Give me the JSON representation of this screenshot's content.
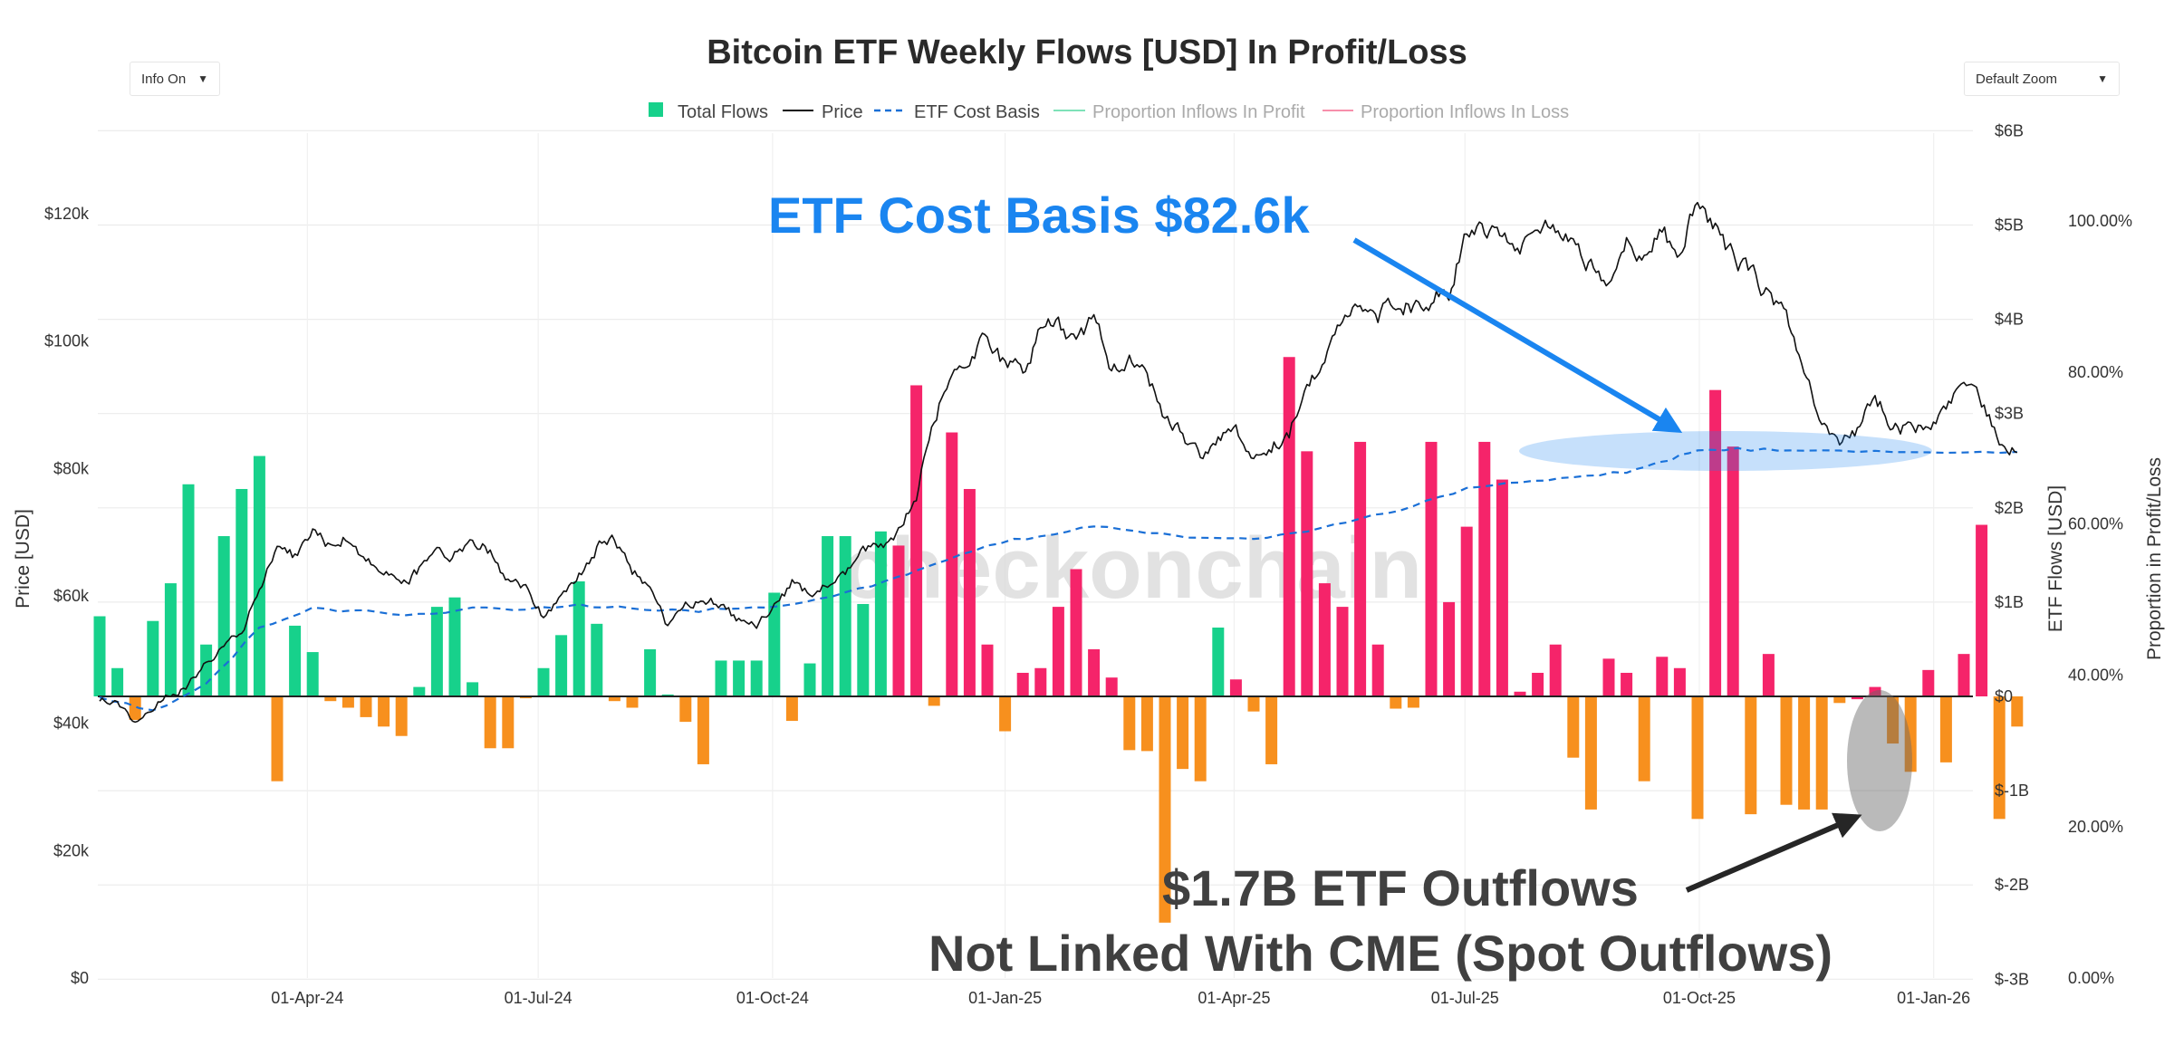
{
  "controls": {
    "info_label": "Info On",
    "zoom_label": "Default Zoom"
  },
  "watermark": "checkonchain",
  "annotations": {
    "cost_basis": "ETF Cost Basis $82.6k",
    "outflows_line1": "$1.7B ETF Outflows",
    "outflows_line2": "Not Linked With CME (Spot Outflows)"
  },
  "colors": {
    "inflow_profit": "#17d18b",
    "inflow_loss": "#f5246a",
    "outflow": "#f7901e",
    "price": "#111111",
    "cost_basis": "#1a6fd6",
    "annotation_blue": "#1a85f0",
    "annotation_dark": "#404040",
    "legend_profit": "#7ee2b8",
    "legend_loss": "#f78fab"
  },
  "chart_data": {
    "type": "bar",
    "title": "Bitcoin ETF Weekly Flows [USD] In Profit/Loss",
    "legend": [
      "Total Flows",
      "Price",
      "ETF Cost Basis",
      "Proportion Inflows In Profit",
      "Proportion Inflows In Loss"
    ],
    "x_ticks": [
      "01-Apr-24",
      "01-Jul-24",
      "01-Oct-24",
      "01-Jan-25",
      "01-Apr-25",
      "01-Jul-25",
      "01-Oct-25",
      "01-Jan-26"
    ],
    "x_tick_weeks": [
      11.7,
      24.7,
      37.9,
      51.0,
      63.9,
      76.9,
      90.1,
      103.3
    ],
    "y_left": {
      "label": "Price [USD]",
      "ticks": [
        "$0",
        "$20k",
        "$40k",
        "$60k",
        "$80k",
        "$100k",
        "$120k"
      ],
      "range": [
        0,
        130000
      ]
    },
    "y_right": {
      "label": "ETF Flows [USD]",
      "ticks": [
        "$-3B",
        "$-2B",
        "$-1B",
        "$0",
        "$1B",
        "$2B",
        "$3B",
        "$4B",
        "$5B",
        "$6B"
      ],
      "range": [
        -3,
        6
      ]
    },
    "y_right2": {
      "label": "Proportion in Profit/Loss",
      "ticks": [
        "0.00%",
        "20.00%",
        "40.00%",
        "60.00%",
        "80.00%",
        "100.00%"
      ]
    },
    "series": [
      {
        "name": "Total Flows",
        "unit": "USD billions",
        "values": [
          0.85,
          0.3,
          -0.25,
          0.8,
          1.2,
          2.25,
          0.55,
          1.7,
          2.2,
          2.55,
          -0.9,
          0.75,
          0.47,
          -0.05,
          -0.12,
          -0.22,
          -0.32,
          -0.42,
          0.1,
          0.95,
          1.05,
          0.15,
          -0.55,
          -0.55,
          -0.02,
          0.3,
          0.65,
          1.22,
          0.77,
          -0.05,
          -0.12,
          0.5,
          0.02,
          -0.27,
          -0.72,
          0.38,
          0.38,
          0.38,
          1.1,
          -0.26,
          0.35,
          1.7,
          1.7,
          0.98,
          1.75,
          1.6,
          3.3,
          -0.1,
          2.8,
          2.2,
          0.55,
          -0.37,
          0.25,
          0.3,
          0.95,
          1.35,
          0.5,
          0.2,
          -0.57,
          -0.58,
          -2.4,
          -0.77,
          -0.9,
          0.73,
          0.18,
          -0.16,
          -0.72,
          3.6,
          2.6,
          1.2,
          0.95,
          2.7,
          0.55,
          -0.13,
          -0.12,
          2.7,
          1.0,
          1.8,
          2.7,
          2.3,
          0.05,
          0.25,
          0.55,
          -0.65,
          -1.2,
          0.4,
          0.25,
          -0.9,
          0.42,
          0.3,
          -1.3,
          3.25,
          2.65,
          -1.25,
          0.45,
          -1.15,
          -1.2,
          -1.2,
          -0.07,
          -0.03,
          0.1,
          -0.5,
          -0.8,
          0.28,
          -0.7,
          0.45,
          1.82,
          -1.3,
          -0.32
        ],
        "categories_color": [
          "profit",
          "profit",
          "out",
          "profit",
          "profit",
          "profit",
          "profit",
          "profit",
          "profit",
          "profit",
          "out",
          "profit",
          "profit",
          "out",
          "out",
          "out",
          "out",
          "out",
          "profit",
          "profit",
          "profit",
          "profit",
          "out",
          "out",
          "out",
          "profit",
          "profit",
          "profit",
          "profit",
          "out",
          "out",
          "profit",
          "profit",
          "out",
          "out",
          "profit",
          "profit",
          "profit",
          "profit",
          "out",
          "profit",
          "profit",
          "profit",
          "profit",
          "profit",
          "loss",
          "loss",
          "out",
          "loss",
          "loss",
          "loss",
          "out",
          "loss",
          "loss",
          "loss",
          "loss",
          "loss",
          "loss",
          "out",
          "out",
          "out",
          "out",
          "out",
          "profit",
          "loss",
          "out",
          "out",
          "loss",
          "loss",
          "loss",
          "loss",
          "loss",
          "loss",
          "out",
          "out",
          "loss",
          "loss",
          "loss",
          "loss",
          "loss",
          "loss",
          "loss",
          "loss",
          "out",
          "out",
          "loss",
          "loss",
          "out",
          "loss",
          "loss",
          "out",
          "loss",
          "loss",
          "out",
          "loss",
          "out",
          "out",
          "out",
          "out",
          "loss",
          "loss",
          "out",
          "out",
          "loss",
          "out",
          "loss",
          "loss",
          "out",
          "out"
        ]
      },
      {
        "name": "Price",
        "unit": "USD",
        "anchors": [
          [
            0,
            44000
          ],
          [
            1,
            43000
          ],
          [
            2,
            40500
          ],
          [
            3,
            42500
          ],
          [
            4,
            44500
          ],
          [
            5,
            46000
          ],
          [
            6,
            50000
          ],
          [
            7,
            52000
          ],
          [
            8,
            54000
          ],
          [
            9,
            61000
          ],
          [
            10,
            68000
          ],
          [
            11,
            66000
          ],
          [
            12,
            70000
          ],
          [
            13,
            68000
          ],
          [
            14,
            69500
          ],
          [
            15,
            66000
          ],
          [
            16,
            63500
          ],
          [
            17,
            62000
          ],
          [
            18,
            64000
          ],
          [
            19,
            66000
          ],
          [
            20,
            66500
          ],
          [
            21,
            69000
          ],
          [
            22,
            67000
          ],
          [
            23,
            62000
          ],
          [
            24,
            61000
          ],
          [
            25,
            57000
          ],
          [
            26,
            60000
          ],
          [
            27,
            63000
          ],
          [
            28,
            67500
          ],
          [
            29,
            69000
          ],
          [
            30,
            64000
          ],
          [
            31,
            61000
          ],
          [
            32,
            55000
          ],
          [
            33,
            58000
          ],
          [
            34,
            60000
          ],
          [
            35,
            58500
          ],
          [
            36,
            56000
          ],
          [
            37,
            55000
          ],
          [
            38,
            58000
          ],
          [
            39,
            62000
          ],
          [
            40,
            60500
          ],
          [
            41,
            61500
          ],
          [
            42,
            63000
          ],
          [
            43,
            67000
          ],
          [
            44,
            68000
          ],
          [
            45,
            70000
          ],
          [
            46,
            76000
          ],
          [
            47,
            88000
          ],
          [
            48,
            95000
          ],
          [
            49,
            98000
          ],
          [
            50,
            100000
          ],
          [
            51,
            96000
          ],
          [
            52,
            95000
          ],
          [
            53,
            102000
          ],
          [
            54,
            103000
          ],
          [
            55,
            99000
          ],
          [
            56,
            104000
          ],
          [
            57,
            96000
          ],
          [
            58,
            97000
          ],
          [
            59,
            95000
          ],
          [
            60,
            88000
          ],
          [
            61,
            85000
          ],
          [
            62,
            82000
          ],
          [
            63,
            84000
          ],
          [
            64,
            86000
          ],
          [
            65,
            82000
          ],
          [
            66,
            84000
          ],
          [
            67,
            85000
          ],
          [
            68,
            94000
          ],
          [
            69,
            97000
          ],
          [
            70,
            103000
          ],
          [
            71,
            106000
          ],
          [
            72,
            104000
          ],
          [
            73,
            107000
          ],
          [
            74,
            105000
          ],
          [
            75,
            107000
          ],
          [
            76,
            108000
          ],
          [
            77,
            118000
          ],
          [
            78,
            118000
          ],
          [
            79,
            117000
          ],
          [
            80,
            115500
          ],
          [
            81,
            119000
          ],
          [
            82,
            117000
          ],
          [
            83,
            115000
          ],
          [
            84,
            112000
          ],
          [
            85,
            110000
          ],
          [
            86,
            115000
          ],
          [
            87,
            112000
          ],
          [
            88,
            117000
          ],
          [
            89,
            113000
          ],
          [
            90,
            122000
          ],
          [
            91,
            118000
          ],
          [
            92,
            113000
          ],
          [
            93,
            111000
          ],
          [
            94,
            107000
          ],
          [
            95,
            104000
          ],
          [
            96,
            96000
          ],
          [
            97,
            88000
          ],
          [
            98,
            85000
          ],
          [
            99,
            86000
          ],
          [
            100,
            91000
          ],
          [
            101,
            87000
          ],
          [
            102,
            86000
          ],
          [
            103,
            87500
          ],
          [
            104,
            88500
          ],
          [
            105,
            94000
          ],
          [
            106,
            90000
          ],
          [
            107,
            85000
          ],
          [
            108,
            82500
          ]
        ]
      },
      {
        "name": "ETF Cost Basis",
        "unit": "USD",
        "anchors": [
          [
            0,
            44000
          ],
          [
            3,
            42000
          ],
          [
            6,
            46000
          ],
          [
            9,
            55000
          ],
          [
            12,
            58000
          ],
          [
            15,
            57500
          ],
          [
            18,
            57000
          ],
          [
            21,
            58000
          ],
          [
            24,
            58000
          ],
          [
            27,
            58500
          ],
          [
            30,
            58000
          ],
          [
            33,
            57500
          ],
          [
            36,
            58000
          ],
          [
            39,
            58500
          ],
          [
            42,
            60500
          ],
          [
            45,
            63000
          ],
          [
            47,
            65000
          ],
          [
            50,
            68000
          ],
          [
            53,
            69500
          ],
          [
            56,
            71000
          ],
          [
            59,
            70000
          ],
          [
            62,
            69000
          ],
          [
            65,
            69000
          ],
          [
            68,
            70000
          ],
          [
            71,
            72000
          ],
          [
            74,
            74000
          ],
          [
            77,
            77000
          ],
          [
            80,
            78000
          ],
          [
            83,
            78500
          ],
          [
            86,
            79500
          ],
          [
            88,
            81000
          ],
          [
            90,
            83000
          ],
          [
            93,
            83000
          ],
          [
            96,
            82800
          ],
          [
            100,
            82600
          ],
          [
            104,
            82600
          ],
          [
            108,
            82600
          ]
        ]
      }
    ]
  }
}
